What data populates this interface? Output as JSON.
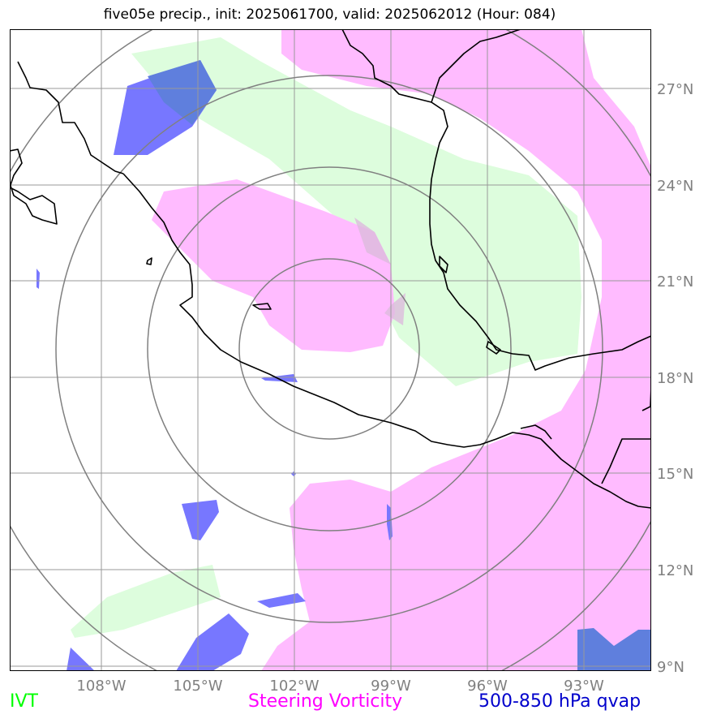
{
  "title": "five05e precip., init: 2025061700, valid: 2025062012 (Hour: 084)",
  "map": {
    "lon_labels": [
      "108°W",
      "105°W",
      "102°W",
      "99°W",
      "96°W",
      "93°W"
    ],
    "lat_labels": [
      "27°N",
      "24°N",
      "21°N",
      "18°N",
      "15°N",
      "12°N",
      "9°N"
    ],
    "colors": {
      "ivt": "#ddfddd",
      "vorticity": "#ffbbff",
      "qvap": "#7777ff",
      "overlap": "#5f7fdd",
      "grid": "#999999",
      "range_rings": "#808080",
      "coastline": "#000000"
    }
  },
  "legend": {
    "ivt": "IVT",
    "vorticity": "Steering Vorticity",
    "qvap": "500-850 hPa qvap"
  }
}
